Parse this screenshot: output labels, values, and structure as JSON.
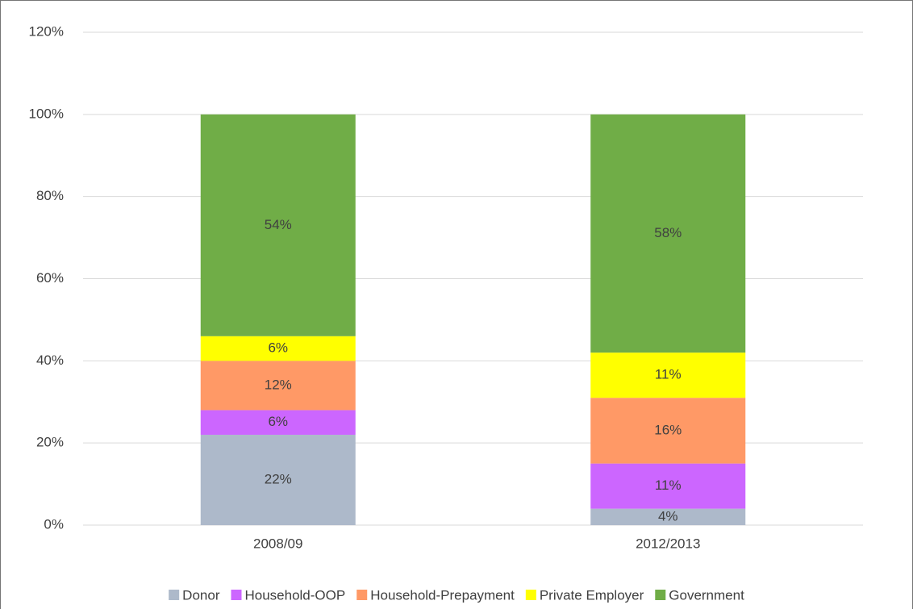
{
  "chart_data": {
    "type": "stacked_bar",
    "categories": [
      "2008/09",
      "2012/2013"
    ],
    "series": [
      {
        "name": "Donor",
        "color": "#adb9ca",
        "values": [
          22,
          4
        ],
        "value_labels": [
          "22%",
          "4%"
        ]
      },
      {
        "name": "Household-OOP",
        "color": "#cc66ff",
        "values": [
          6,
          11
        ],
        "value_labels": [
          "6%",
          "11%"
        ]
      },
      {
        "name": "Household-Prepayment",
        "color": "#ff9966",
        "values": [
          12,
          16
        ],
        "value_labels": [
          "12%",
          "16%"
        ]
      },
      {
        "name": "Private Employer",
        "color": "#ffff00",
        "values": [
          6,
          11
        ],
        "value_labels": [
          "6%",
          "11%"
        ]
      },
      {
        "name": "Government",
        "color": "#70ad47",
        "values": [
          54,
          58
        ],
        "value_labels": [
          "54%",
          "58%"
        ]
      }
    ],
    "ylim": [
      0,
      120
    ],
    "yticks": [
      {
        "value": 0,
        "label": "0%"
      },
      {
        "value": 20,
        "label": "20%"
      },
      {
        "value": 40,
        "label": "40%"
      },
      {
        "value": 60,
        "label": "60%"
      },
      {
        "value": 80,
        "label": "80%"
      },
      {
        "value": 100,
        "label": "100%"
      },
      {
        "value": 120,
        "label": "120%"
      }
    ],
    "grid": true,
    "legend": "bottom"
  }
}
